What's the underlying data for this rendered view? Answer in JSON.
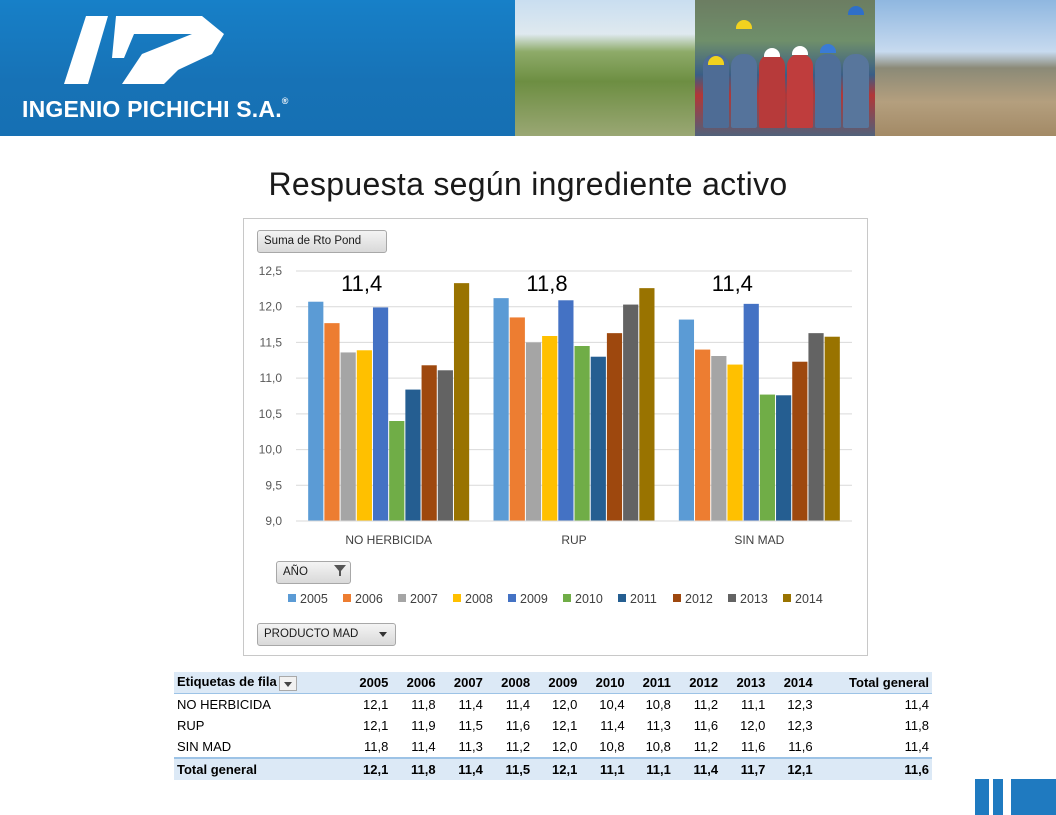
{
  "header": {
    "company": "INGENIO PICHICHI S.A.",
    "registered_mark": "®",
    "brand_color": "#1a7bc4"
  },
  "slide_title": "Respuesta según ingrediente activo",
  "pivot_chart": {
    "value_field": "Suma de Rto Pond",
    "year_field": "AÑO",
    "product_field": "PRODUCTO MAD",
    "group_annotations": [
      "11,4",
      "11,8",
      "11,4"
    ]
  },
  "chart_data": {
    "type": "bar",
    "categories": [
      "NO HERBICIDA",
      "RUP",
      "SIN MAD"
    ],
    "ylim": [
      9.0,
      12.5
    ],
    "yticks": [
      "9,0",
      "9,5",
      "10,0",
      "10,5",
      "11,0",
      "11,5",
      "12,0",
      "12,5"
    ],
    "grid": true,
    "legend_position": "bottom",
    "series": [
      {
        "name": "2005",
        "color": "#5b9bd5",
        "values": [
          12.07,
          12.12,
          11.82
        ]
      },
      {
        "name": "2006",
        "color": "#ed7d31",
        "values": [
          11.77,
          11.85,
          11.4
        ]
      },
      {
        "name": "2007",
        "color": "#a5a5a5",
        "values": [
          11.36,
          11.5,
          11.31
        ]
      },
      {
        "name": "2008",
        "color": "#ffc000",
        "values": [
          11.39,
          11.59,
          11.19
        ]
      },
      {
        "name": "2009",
        "color": "#4472c4",
        "values": [
          11.99,
          12.09,
          12.04
        ]
      },
      {
        "name": "2010",
        "color": "#70ad47",
        "values": [
          10.4,
          11.45,
          10.77
        ]
      },
      {
        "name": "2011",
        "color": "#255e91",
        "values": [
          10.84,
          11.3,
          10.76
        ]
      },
      {
        "name": "2012",
        "color": "#9e480e",
        "values": [
          11.18,
          11.63,
          11.23
        ]
      },
      {
        "name": "2013",
        "color": "#636363",
        "values": [
          11.11,
          12.03,
          11.63
        ]
      },
      {
        "name": "2014",
        "color": "#997300",
        "values": [
          12.33,
          12.26,
          11.58
        ]
      }
    ]
  },
  "pivot_table": {
    "row_label_header": "Etiquetas de fila",
    "columns": [
      "2005",
      "2006",
      "2007",
      "2008",
      "2009",
      "2010",
      "2011",
      "2012",
      "2013",
      "2014",
      "Total general"
    ],
    "rows": [
      {
        "label": "NO HERBICIDA",
        "values": [
          "12,1",
          "11,8",
          "11,4",
          "11,4",
          "12,0",
          "10,4",
          "10,8",
          "11,2",
          "11,1",
          "12,3",
          "11,4"
        ]
      },
      {
        "label": "RUP",
        "values": [
          "12,1",
          "11,9",
          "11,5",
          "11,6",
          "12,1",
          "11,4",
          "11,3",
          "11,6",
          "12,0",
          "12,3",
          "11,8"
        ]
      },
      {
        "label": "SIN MAD",
        "values": [
          "11,8",
          "11,4",
          "11,3",
          "11,2",
          "12,0",
          "10,8",
          "10,8",
          "11,2",
          "11,6",
          "11,6",
          "11,4"
        ]
      }
    ],
    "total": {
      "label": "Total general",
      "values": [
        "12,1",
        "11,8",
        "11,4",
        "11,5",
        "12,1",
        "11,1",
        "11,1",
        "11,4",
        "11,7",
        "12,1",
        "11,6"
      ]
    }
  }
}
